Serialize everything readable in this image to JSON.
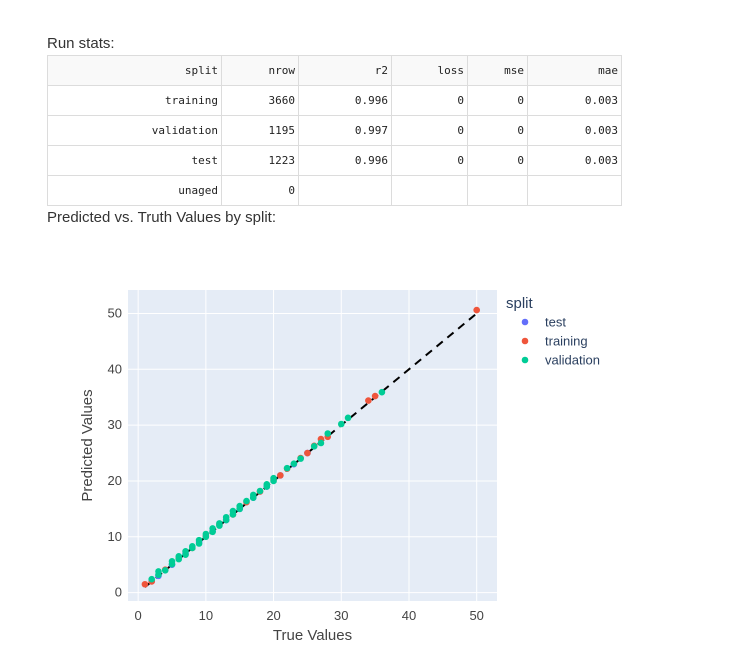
{
  "stats_title": "Run stats:",
  "table": {
    "headers": [
      "split",
      "nrow",
      "r2",
      "loss",
      "mse",
      "mae"
    ],
    "rows": [
      [
        "training",
        "3660",
        "0.996",
        "0",
        "0",
        "0.003"
      ],
      [
        "validation",
        "1195",
        "0.997",
        "0",
        "0",
        "0.003"
      ],
      [
        "test",
        "1223",
        "0.996",
        "0",
        "0",
        "0.003"
      ],
      [
        "unaged",
        "0",
        "",
        "",
        "",
        ""
      ]
    ]
  },
  "plot_title": "Predicted vs. Truth Values by split:",
  "chart_data": {
    "type": "scatter",
    "xlabel": "True Values",
    "ylabel": "Predicted Values",
    "xlim": [
      -1.5,
      53.0
    ],
    "ylim": [
      -1.5,
      54.2
    ],
    "xticks": [
      0,
      10,
      20,
      30,
      40,
      50
    ],
    "yticks": [
      0,
      10,
      20,
      30,
      40,
      50
    ],
    "grid": true,
    "legend_title": "split",
    "legend_position": "right",
    "reference_line": {
      "x": [
        1,
        50
      ],
      "y": [
        1,
        50
      ],
      "style": "dashed",
      "color": "#000000"
    },
    "series": [
      {
        "name": "test",
        "color": "#636efa",
        "x": [
          2,
          3,
          5,
          7,
          9,
          11,
          13,
          15,
          17,
          19,
          21,
          23,
          25
        ],
        "y": [
          2.1,
          3.0,
          5.0,
          7.0,
          9.1,
          11.0,
          13.0,
          15.0,
          17.0,
          19.0,
          21.0,
          23.0,
          25.0
        ]
      },
      {
        "name": "training",
        "color": "#ef553b",
        "x": [
          1,
          2,
          4,
          6,
          8,
          10,
          12,
          14,
          16,
          18,
          20,
          21,
          22,
          24,
          25,
          26,
          27,
          28,
          34,
          35,
          50
        ],
        "y": [
          1.5,
          2.0,
          4.1,
          6.2,
          8.0,
          10.1,
          12.2,
          14.0,
          16.2,
          18.1,
          20.2,
          21.0,
          22.2,
          24.1,
          25.0,
          26.3,
          27.5,
          27.9,
          34.4,
          35.2,
          50.6
        ]
      },
      {
        "name": "validation",
        "color": "#00cc96",
        "x": [
          2,
          3,
          3,
          4,
          5,
          5,
          6,
          6,
          7,
          7,
          8,
          8,
          9,
          9,
          10,
          10,
          11,
          11,
          12,
          12,
          13,
          13,
          14,
          14,
          15,
          15,
          16,
          17,
          17,
          18,
          19,
          19,
          20,
          20,
          22,
          23,
          24,
          26,
          27,
          28,
          30,
          31,
          36
        ],
        "y": [
          2.4,
          3.2,
          3.8,
          4.0,
          5.1,
          5.6,
          6.0,
          6.5,
          6.8,
          7.4,
          8.0,
          8.3,
          8.8,
          9.4,
          10.0,
          10.5,
          10.9,
          11.5,
          12.0,
          12.4,
          13.0,
          13.5,
          14.0,
          14.6,
          15.0,
          15.5,
          16.4,
          17.0,
          17.5,
          18.2,
          19.0,
          19.4,
          20.0,
          20.5,
          22.3,
          23.1,
          24.0,
          26.2,
          26.8,
          28.5,
          30.2,
          31.3,
          35.9
        ]
      }
    ]
  }
}
